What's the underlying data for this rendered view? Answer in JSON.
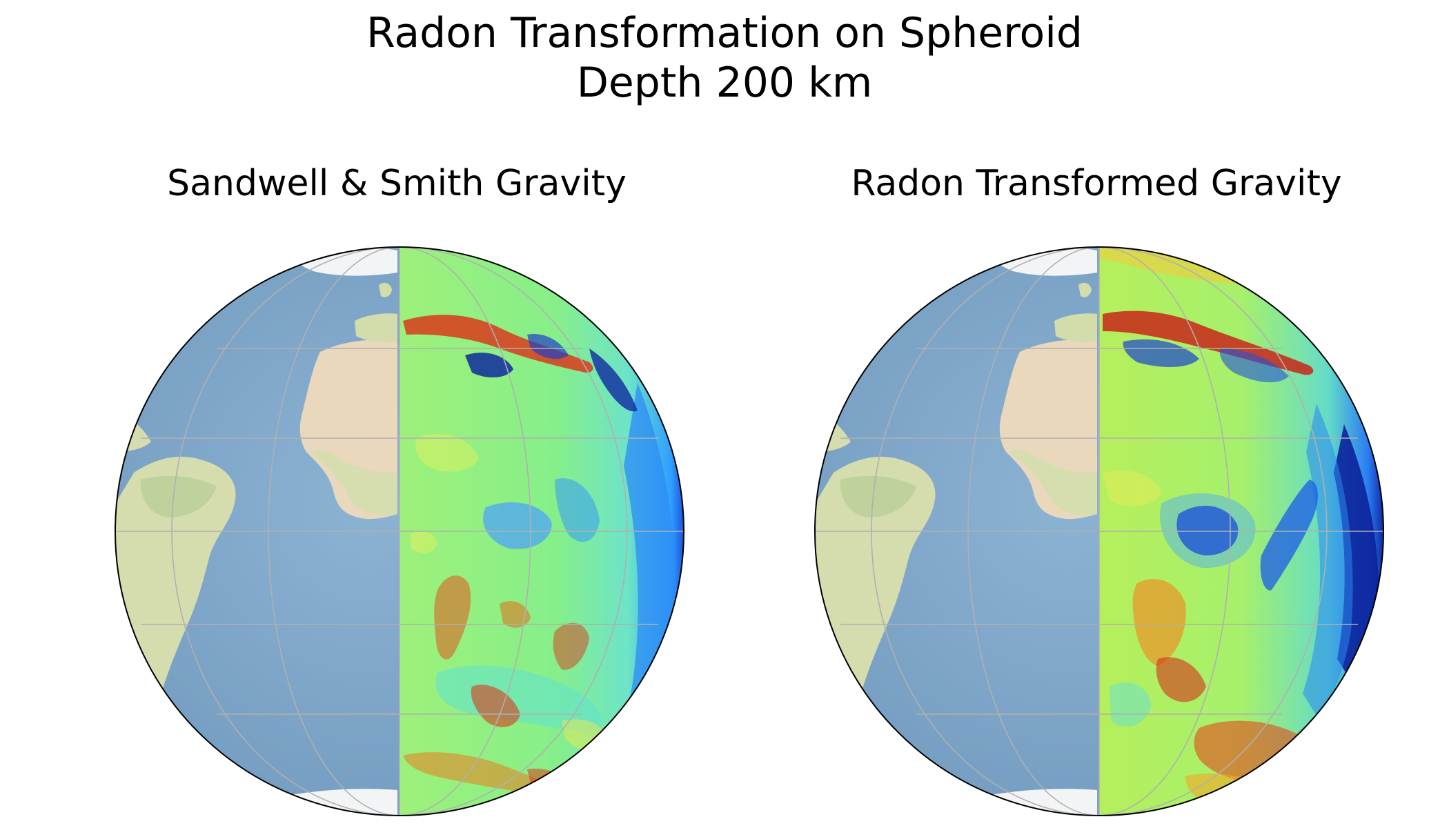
{
  "figure": {
    "title_line1": "Radon Transformation on Spheroid",
    "title_line2": "Depth 200 km"
  },
  "panels": [
    {
      "id": "left",
      "title": "Sandwell & Smith Gravity",
      "projection": "orthographic",
      "basemap": "stock-image",
      "overlay": "Sandwell & Smith gravity anomaly, eastern hemisphere half",
      "colormap": "jet"
    },
    {
      "id": "right",
      "title": "Radon Transformed Gravity",
      "projection": "orthographic",
      "basemap": "stock-image",
      "overlay": "Radon transformed gravity, eastern hemisphere half",
      "colormap": "jet"
    }
  ],
  "colors": {
    "ocean": "#7fa7c9",
    "land": "#d9dfb0",
    "desert": "#ecd9bd",
    "gridline": "#b0b0b0",
    "outline": "#000000",
    "jet_mid": "#8ff37a",
    "jet_low": "#1f6fff",
    "jet_high": "#e33b1a"
  }
}
